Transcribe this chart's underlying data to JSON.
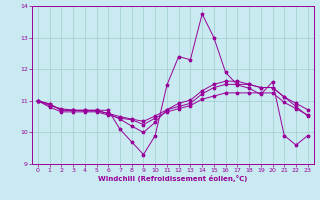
{
  "xlabel": "Windchill (Refroidissement éolien,°C)",
  "ylabel": "",
  "xlim": [
    -0.5,
    23.5
  ],
  "ylim": [
    9,
    14
  ],
  "yticks": [
    9,
    10,
    11,
    12,
    13,
    14
  ],
  "xticks": [
    0,
    1,
    2,
    3,
    4,
    5,
    6,
    7,
    8,
    9,
    10,
    11,
    12,
    13,
    14,
    15,
    16,
    17,
    18,
    19,
    20,
    21,
    22,
    23
  ],
  "bg_color": "#c8eaf0",
  "grid_color": "#a0cccc",
  "line_color": "#990099",
  "lines": [
    [
      11.0,
      10.9,
      10.7,
      10.7,
      10.7,
      10.7,
      10.7,
      10.1,
      9.7,
      9.3,
      9.9,
      11.5,
      12.4,
      12.3,
      13.75,
      13.0,
      11.9,
      11.5,
      11.4,
      11.2,
      11.6,
      9.9,
      9.6,
      9.9
    ],
    [
      11.0,
      10.8,
      10.65,
      10.65,
      10.65,
      10.65,
      10.55,
      10.45,
      10.4,
      10.25,
      10.45,
      10.65,
      10.75,
      10.85,
      11.05,
      11.15,
      11.25,
      11.25,
      11.25,
      11.25,
      11.25,
      10.95,
      10.75,
      10.55
    ],
    [
      11.0,
      10.85,
      10.75,
      10.7,
      10.7,
      10.7,
      10.6,
      10.5,
      10.42,
      10.35,
      10.52,
      10.72,
      10.82,
      10.92,
      11.22,
      11.42,
      11.52,
      11.52,
      11.52,
      11.42,
      11.42,
      11.12,
      10.92,
      10.72
    ],
    [
      11.0,
      10.9,
      10.7,
      10.7,
      10.68,
      10.68,
      10.6,
      10.42,
      10.2,
      10.0,
      10.32,
      10.72,
      10.92,
      11.02,
      11.32,
      11.52,
      11.62,
      11.62,
      11.52,
      11.42,
      11.42,
      11.12,
      10.82,
      10.52
    ]
  ]
}
